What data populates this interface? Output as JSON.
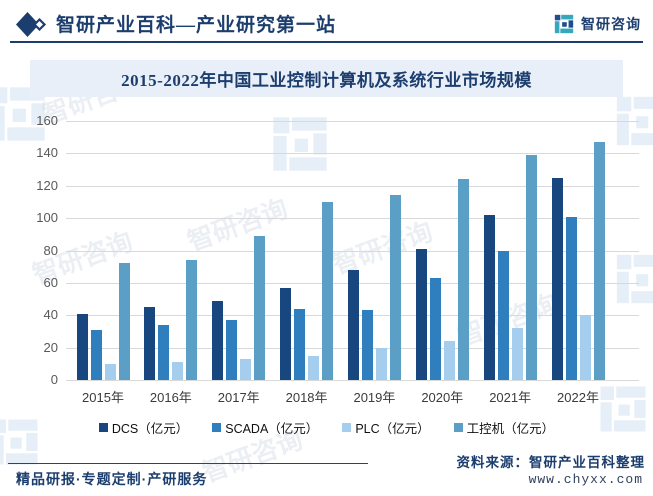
{
  "header": {
    "title": "智研产业百科—产业研究第一站",
    "brand": "智研咨询"
  },
  "watermark": {
    "text": "智研咨询"
  },
  "footer": {
    "tagline": "精品研报·专题定制·产研服务",
    "source": "资料来源：智研产业百科整理",
    "site": "www.chyxx.com"
  },
  "chart_data": {
    "type": "bar",
    "title": "2015-2022年中国工业控制计算机及系统行业市场规模",
    "categories": [
      "2015年",
      "2016年",
      "2017年",
      "2018年",
      "2019年",
      "2020年",
      "2021年",
      "2022年"
    ],
    "series": [
      {
        "name": "DCS（亿元）",
        "color": "#17477e",
        "values": [
          41,
          45,
          49,
          57,
          68,
          81,
          102,
          125
        ]
      },
      {
        "name": "SCADA（亿元）",
        "color": "#2f7fbf",
        "values": [
          31,
          34,
          37,
          44,
          43,
          63,
          80,
          101
        ]
      },
      {
        "name": "PLC（亿元）",
        "color": "#a5cdee",
        "values": [
          10,
          11,
          13,
          15,
          20,
          24,
          32,
          40
        ]
      },
      {
        "name": "工控机（亿元）",
        "color": "#5b9fc7",
        "values": [
          72,
          74,
          89,
          110,
          114,
          124,
          139,
          147
        ]
      }
    ],
    "ylim": [
      0,
      160
    ],
    "ytick_step": 20,
    "grid": true,
    "legend_position": "bottom"
  }
}
